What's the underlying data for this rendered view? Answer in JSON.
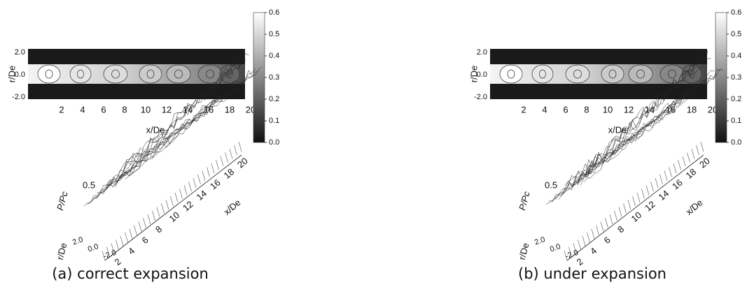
{
  "panels": [
    {
      "caption": "(a) correct expansion",
      "contour": {
        "y_label": "r/De",
        "y_ticks": [
          "2.0",
          "0.0",
          "-2.0"
        ],
        "x_label": "x/De",
        "x_ticks": [
          "2",
          "4",
          "6",
          "8",
          "10",
          "12",
          "14",
          "16",
          "18",
          "20"
        ],
        "colorbar_ticks": [
          "0.6",
          "0.5",
          "0.4",
          "0.3",
          "0.2",
          "0.1",
          "0.0"
        ]
      },
      "surface": {
        "z_label": "P/Pc",
        "z_tick": "0.5",
        "r_label": "r/De",
        "r_ticks": [
          "2.0",
          "0.0",
          "-2.0"
        ],
        "x_label": "x/De",
        "x_ticks": [
          "2",
          "4",
          "6",
          "8",
          "10",
          "12",
          "14",
          "16",
          "18",
          "20"
        ]
      }
    },
    {
      "caption": "(b) under expansion",
      "contour": {
        "y_label": "r/De",
        "y_ticks": [
          "2.0",
          "0.0",
          "-2.0"
        ],
        "x_label": "x/De",
        "x_ticks": [
          "2",
          "4",
          "6",
          "8",
          "10",
          "12",
          "14",
          "16",
          "18",
          "20"
        ],
        "colorbar_ticks": [
          "0.6",
          "0.5",
          "0.4",
          "0.3",
          "0.2",
          "0.1",
          "0.0"
        ]
      },
      "surface": {
        "z_label": "P/Pc",
        "z_tick": "0.5",
        "r_label": "r/De",
        "r_ticks": [
          "2.0",
          "0.0",
          "-2.0"
        ],
        "x_label": "x/De",
        "x_ticks": [
          "2",
          "4",
          "6",
          "8",
          "10",
          "12",
          "14",
          "16",
          "18",
          "20"
        ]
      }
    }
  ]
}
